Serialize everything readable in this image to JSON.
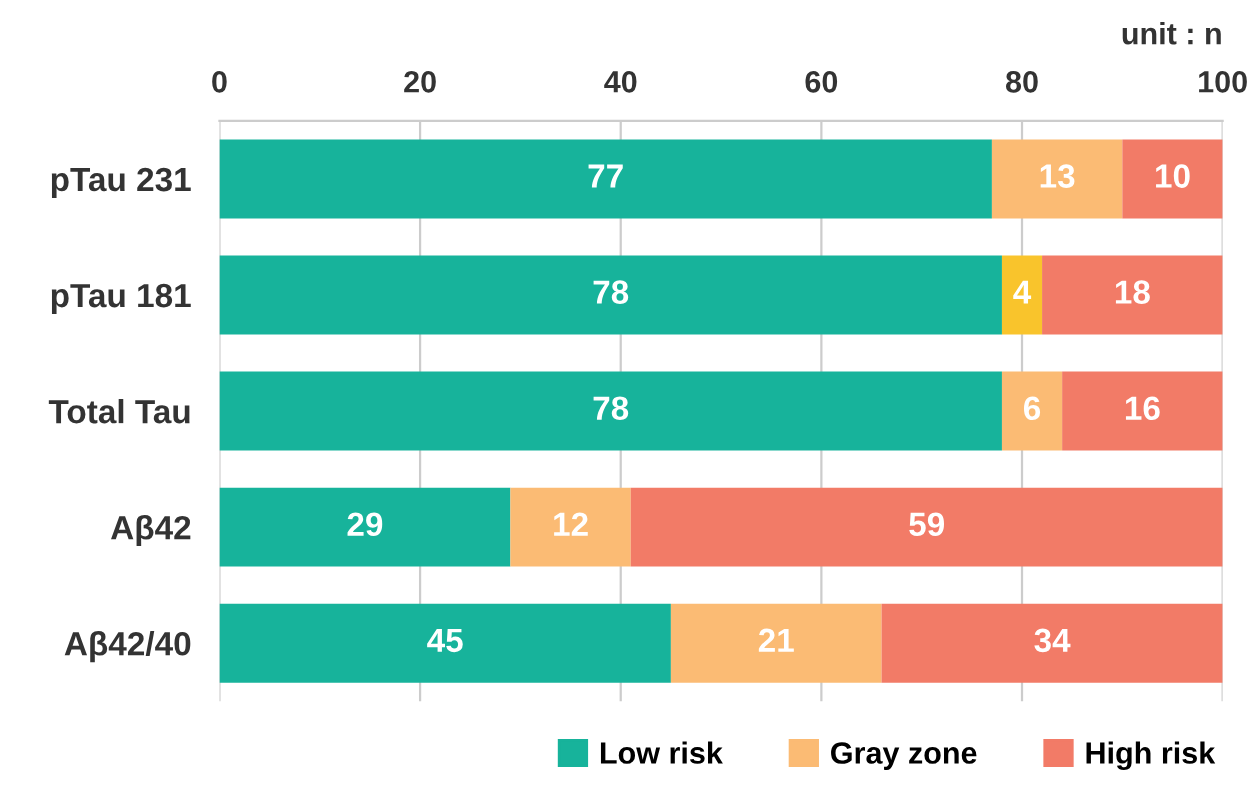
{
  "chart_data": {
    "type": "bar",
    "orientation": "horizontal",
    "stacked": true,
    "categories": [
      "pTau 231",
      "pTau 181",
      "Total Tau",
      "Aβ42",
      "Aβ42/40"
    ],
    "series": [
      {
        "name": "Low risk",
        "color": "#17b39b",
        "values": [
          77,
          78,
          78,
          29,
          45
        ]
      },
      {
        "name": "Gray zone",
        "color": "#fbbb74",
        "colors": [
          "#fbbb74",
          "#f9c42c",
          "#fbbb74",
          "#fbbb74",
          "#fbbb74"
        ],
        "values": [
          13,
          4,
          6,
          12,
          21
        ]
      },
      {
        "name": "High risk",
        "color": "#f27b67",
        "values": [
          10,
          18,
          16,
          59,
          34
        ]
      }
    ],
    "xlim": [
      0,
      100
    ],
    "xticks": [
      0,
      20,
      40,
      60,
      80,
      100
    ],
    "grid": "x",
    "data_labels": true,
    "legend": "bottom right",
    "annotations": [
      "unit : n"
    ]
  }
}
